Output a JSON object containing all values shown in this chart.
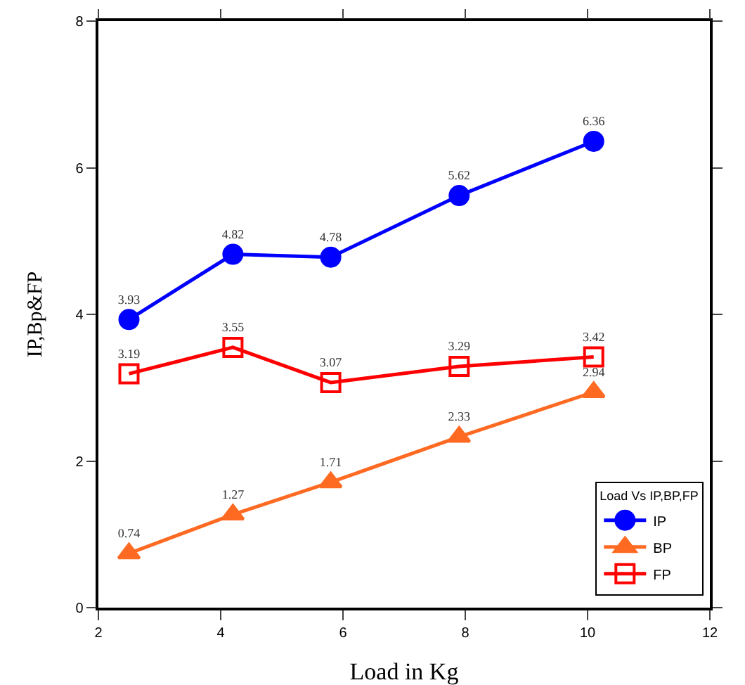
{
  "chart_data": {
    "type": "line",
    "xlabel": "Load in Kg",
    "ylabel": "IP,Bp&FP",
    "legend_title": "Load Vs IP,BP,FP",
    "x": [
      2.5,
      4.2,
      5.8,
      7.9,
      10.1
    ],
    "series": [
      {
        "name": "IP",
        "color": "#0000ff",
        "marker": "circle",
        "values": [
          3.93,
          4.82,
          4.78,
          5.62,
          6.36
        ]
      },
      {
        "name": "BP",
        "color": "#ff6a22",
        "marker": "triangle",
        "values": [
          0.74,
          1.27,
          1.71,
          2.33,
          2.94
        ]
      },
      {
        "name": "FP",
        "color": "#ff0000",
        "marker": "square",
        "values": [
          3.19,
          3.55,
          3.07,
          3.29,
          3.42
        ]
      }
    ],
    "xlim": [
      2,
      12
    ],
    "xticks": [
      2,
      4,
      6,
      8,
      10,
      12
    ],
    "ylim": [
      0,
      8
    ],
    "yticks": [
      0,
      2,
      4,
      6,
      8
    ],
    "grid": false,
    "legend": "bottom right",
    "data_labels": true,
    "line_style": "solid"
  }
}
